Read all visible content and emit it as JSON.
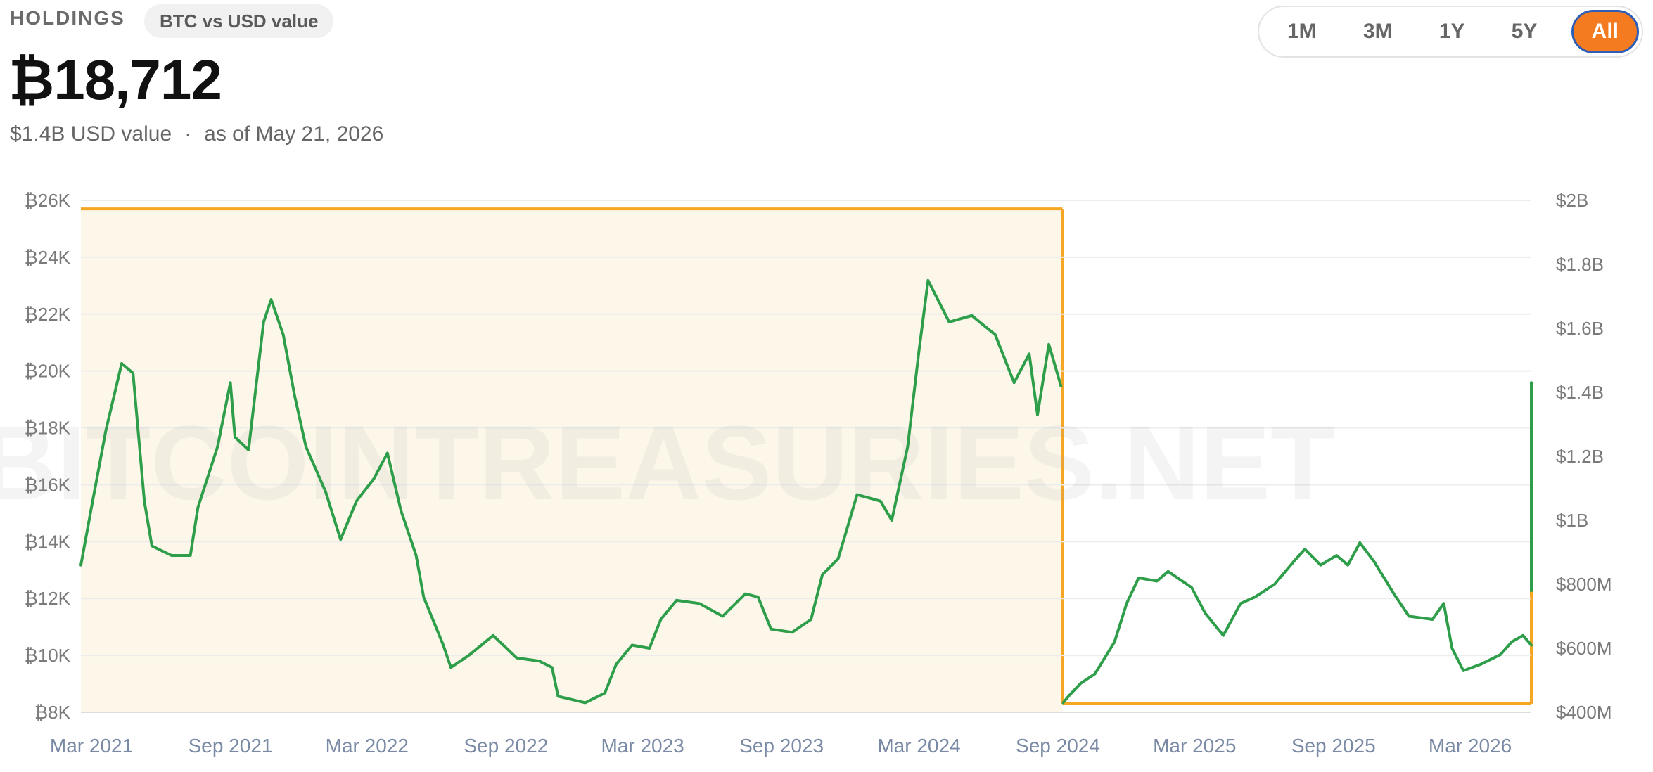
{
  "header": {
    "label": "HOLDINGS",
    "mode_pill": "BTC vs USD value",
    "value": "₿18,712",
    "usd_value": "$1.4B USD value",
    "separator": "·",
    "as_of": "as of May 21, 2026"
  },
  "range_toggle": {
    "options": [
      "1M",
      "3M",
      "1Y",
      "5Y",
      "All"
    ],
    "selected": "All",
    "active_color": "#f47b20"
  },
  "watermark": "BITCOINTREASURIES.NET",
  "chart_data": {
    "type": "line",
    "x_ticks": [
      "Mar 2021",
      "Sep 2021",
      "Mar 2022",
      "Sep 2022",
      "Mar 2023",
      "Sep 2023",
      "Mar 2024",
      "Sep 2024",
      "Mar 2025",
      "Sep 2025",
      "Mar 2026"
    ],
    "y_left_ticks": [
      "₿8K",
      "₿10K",
      "₿12K",
      "₿14K",
      "₿16K",
      "₿18K",
      "₿20K",
      "₿22K",
      "₿24K",
      "₿26K"
    ],
    "y_left_range": [
      8000,
      26000
    ],
    "y_right_ticks": [
      "$400M",
      "$600M",
      "$800M",
      "$1B",
      "$1.2B",
      "$1.4B",
      "$1.6B",
      "$1.8B",
      "$2B"
    ],
    "y_right_range": [
      400000000,
      2000000000
    ],
    "grid": true,
    "line_color": "#2e9e4a",
    "series": [
      {
        "axis": "right",
        "x": [
          "2021-02-15",
          "2021-03-01",
          "2021-03-20",
          "2021-04-10",
          "2021-04-25",
          "2021-05-10",
          "2021-05-20",
          "2021-06-15",
          "2021-07-10",
          "2021-07-20",
          "2021-08-15",
          "2021-09-01",
          "2021-09-07",
          "2021-09-25",
          "2021-10-15",
          "2021-10-25",
          "2021-11-10",
          "2021-11-25",
          "2021-12-10",
          "2022-01-05",
          "2022-01-25",
          "2022-02-15",
          "2022-03-10",
          "2022-03-28",
          "2022-04-15",
          "2022-05-05",
          "2022-05-15",
          "2022-06-10",
          "2022-06-20",
          "2022-07-15",
          "2022-08-15",
          "2022-09-15",
          "2022-10-15",
          "2022-11-01",
          "2022-11-09",
          "2022-12-15",
          "2023-01-10",
          "2023-01-25",
          "2023-02-15",
          "2023-03-10",
          "2023-03-25",
          "2023-04-15",
          "2023-05-15",
          "2023-06-15",
          "2023-07-15",
          "2023-08-01",
          "2023-08-18",
          "2023-09-15",
          "2023-10-10",
          "2023-10-25",
          "2023-11-15",
          "2023-12-10",
          "2024-01-10",
          "2024-01-25",
          "2024-02-15",
          "2024-03-01",
          "2024-03-13",
          "2024-04-10",
          "2024-05-10",
          "2024-06-10",
          "2024-07-05",
          "2024-07-25",
          "2024-08-05",
          "2024-08-20",
          "2024-09-05"
        ],
        "values": [
          860000000,
          1040000000,
          1280000000,
          1490000000,
          1460000000,
          1060000000,
          920000000,
          890000000,
          890000000,
          1040000000,
          1230000000,
          1430000000,
          1260000000,
          1220000000,
          1620000000,
          1690000000,
          1580000000,
          1390000000,
          1230000000,
          1090000000,
          940000000,
          1060000000,
          1130000000,
          1210000000,
          1030000000,
          890000000,
          760000000,
          610000000,
          540000000,
          580000000,
          640000000,
          570000000,
          560000000,
          540000000,
          450000000,
          430000000,
          460000000,
          550000000,
          610000000,
          600000000,
          690000000,
          750000000,
          740000000,
          700000000,
          770000000,
          760000000,
          660000000,
          650000000,
          690000000,
          830000000,
          880000000,
          1080000000,
          1060000000,
          1000000000,
          1230000000,
          1530000000,
          1750000000,
          1620000000,
          1640000000,
          1580000000,
          1430000000,
          1520000000,
          1330000000,
          1550000000,
          1420000000
        ]
      },
      {
        "axis": "right",
        "x": [
          "2024-09-08",
          "2024-09-15",
          "2024-10-01",
          "2024-10-20",
          "2024-11-15",
          "2024-12-01",
          "2024-12-17",
          "2025-01-10",
          "2025-01-25",
          "2025-02-25",
          "2025-03-15",
          "2025-04-08",
          "2025-05-01",
          "2025-05-20",
          "2025-06-15",
          "2025-07-10",
          "2025-07-25",
          "2025-08-15",
          "2025-09-05",
          "2025-09-20",
          "2025-10-06",
          "2025-10-25",
          "2025-11-20",
          "2025-12-10",
          "2026-01-10",
          "2026-01-25",
          "2026-02-05",
          "2026-02-20",
          "2026-03-15",
          "2026-04-10",
          "2026-04-25",
          "2026-05-10",
          "2026-05-21"
        ],
        "values": [
          430000000,
          450000000,
          490000000,
          520000000,
          620000000,
          740000000,
          820000000,
          810000000,
          840000000,
          790000000,
          710000000,
          640000000,
          740000000,
          760000000,
          800000000,
          870000000,
          910000000,
          860000000,
          890000000,
          860000000,
          930000000,
          870000000,
          770000000,
          700000000,
          690000000,
          740000000,
          600000000,
          530000000,
          550000000,
          580000000,
          620000000,
          640000000,
          610000000
        ]
      },
      {
        "axis": "right",
        "x": [
          "2026-05-21",
          "2026-05-21"
        ],
        "values": [
          780000000,
          1430000000
        ]
      }
    ],
    "regions": [
      {
        "x_start": "2021-02-15",
        "x_end": "2024-09-07",
        "axis": "left",
        "y": 25700,
        "color": "#f5a623",
        "fill": "#fdf7ea"
      },
      {
        "x_start": "2024-09-07",
        "x_end": "2026-05-21",
        "axis": "left",
        "y": 8300,
        "color": "#f5a623",
        "fill": "none"
      }
    ]
  }
}
